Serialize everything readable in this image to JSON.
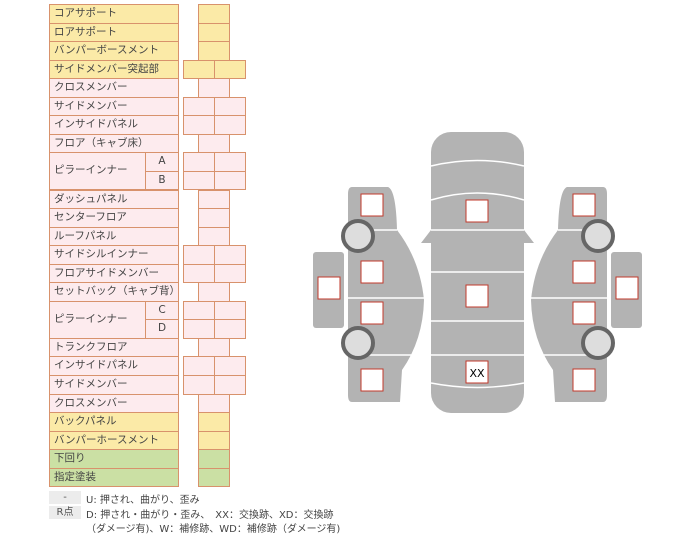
{
  "rows": [
    {
      "label": "コアサポート",
      "color": "yellow",
      "marks": 1
    },
    {
      "label": "ロアサポート",
      "color": "yellow",
      "marks": 1
    },
    {
      "label": "バンパーボースメント",
      "color": "yellow",
      "marks": 1
    },
    {
      "label": "サイドメンバー突起部",
      "color": "yellow",
      "marks": 2
    },
    {
      "label": "クロスメンバー",
      "color": "pink",
      "marks": 1
    },
    {
      "label": "サイドメンバー",
      "color": "pink",
      "marks": 2
    },
    {
      "label": "インサイドパネル",
      "color": "pink",
      "marks": 2
    },
    {
      "label": "フロア（キャブ床）",
      "color": "pink",
      "marks": 1
    },
    {
      "label": "ピラーインナー",
      "sub": "A",
      "color": "pink",
      "marks": 2
    },
    {
      "label": "",
      "sub": "B",
      "color": "pink",
      "marks": 2
    },
    {
      "label": "ダッシュパネル",
      "color": "pink",
      "marks": 1
    },
    {
      "label": "センターフロア",
      "color": "pink",
      "marks": 1
    },
    {
      "label": "ルーフパネル",
      "color": "pink",
      "marks": 1
    },
    {
      "label": "サイドシルインナー",
      "color": "pink",
      "marks": 2
    },
    {
      "label": "フロアサイドメンバー",
      "color": "pink",
      "marks": 2
    },
    {
      "label": "セットバック（キャブ背）",
      "color": "pink",
      "marks": 1
    },
    {
      "label": "ピラーインナー",
      "sub": "C",
      "color": "pink",
      "marks": 2
    },
    {
      "label": "",
      "sub": "D",
      "color": "pink",
      "marks": 2
    },
    {
      "label": "トランクフロア",
      "color": "pink",
      "marks": 1
    },
    {
      "label": "インサイドパネル",
      "color": "pink",
      "marks": 2
    },
    {
      "label": "サイドメンバー",
      "color": "pink",
      "marks": 2
    },
    {
      "label": "クロスメンバー",
      "color": "pink",
      "marks": 1
    },
    {
      "label": "バックパネル",
      "color": "yellow",
      "marks": 1
    },
    {
      "label": "バンパーホースメント",
      "color": "yellow",
      "marks": 1
    },
    {
      "label": "下回り",
      "color": "green",
      "marks": 1
    },
    {
      "label": "指定塗装",
      "color": "green",
      "marks": 1
    }
  ],
  "legend": {
    "k1": "-",
    "t1": "U: 押され、曲がり、歪み",
    "k2": "R点",
    "t2": "D: 押され・曲がり・歪み、　XX：交換跡、XD：交換跡",
    "t3": "（ダメージ有)、W：補修跡、WD：補修跡（ダメージ有)"
  },
  "diagram": {
    "marked_label": "XX"
  },
  "colors": {
    "yellow": "#fbeaa7",
    "pink": "#fdebee",
    "green": "#cbe0a4",
    "border": "#d8926c",
    "body": "#b3b3b3",
    "mark_border": "#c0392b"
  }
}
